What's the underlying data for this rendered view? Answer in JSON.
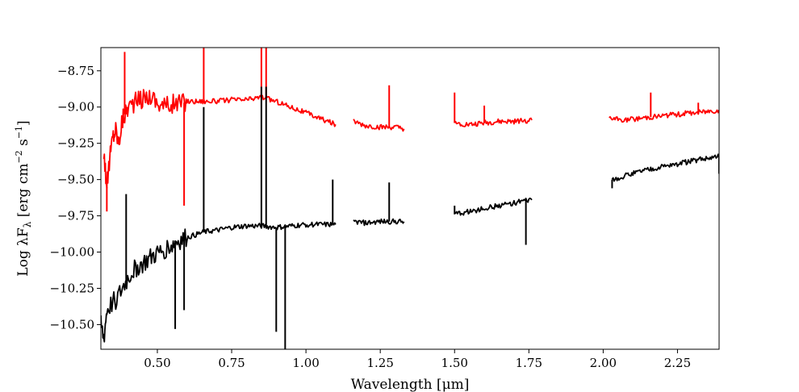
{
  "chart_data": {
    "type": "line",
    "title": "",
    "xlabel": "Wavelength [μm]",
    "ylabel": "Log λF",
    "ylabel_sub": "λ",
    "ylabel_units": " [erg cm",
    "ylabel_exp1": "−2",
    "ylabel_mid": " s",
    "ylabel_exp2": "−1",
    "ylabel_close": "]",
    "xlim": [
      0.31,
      2.39
    ],
    "ylim": [
      -10.67,
      -8.59
    ],
    "xticks": [
      0.5,
      0.75,
      1.0,
      1.25,
      1.5,
      1.75,
      2.0,
      2.25
    ],
    "xtick_labels": [
      "0.50",
      "0.75",
      "1.00",
      "1.25",
      "1.50",
      "1.75",
      "2.00",
      "2.25"
    ],
    "yticks": [
      -8.75,
      -9.0,
      -9.25,
      -9.5,
      -9.75,
      -10.0,
      -10.25,
      -10.5
    ],
    "ytick_labels": [
      "−8.75",
      "−9.00",
      "−9.25",
      "−9.50",
      "−9.75",
      "−10.00",
      "−10.25",
      "−10.50"
    ],
    "grid": false,
    "series": [
      {
        "color": "#ff0000",
        "segments": [
          {
            "x": [
              0.32,
              0.33,
              0.34,
              0.35,
              0.36,
              0.37,
              0.38,
              0.39,
              0.4,
              0.42,
              0.44,
              0.46,
              0.48,
              0.5,
              0.53,
              0.55,
              0.58,
              0.6,
              0.65,
              0.7,
              0.75,
              0.8,
              0.85,
              0.9,
              0.95,
              1.0,
              1.05,
              1.1
            ],
            "y": [
              -9.3,
              -9.55,
              -9.35,
              -9.2,
              -9.15,
              -9.25,
              -9.1,
              -9.05,
              -9.0,
              -8.97,
              -8.95,
              -8.93,
              -8.92,
              -8.97,
              -8.99,
              -8.98,
              -8.97,
              -8.96,
              -8.96,
              -8.96,
              -8.95,
              -8.95,
              -8.93,
              -8.96,
              -9.0,
              -9.04,
              -9.08,
              -9.12
            ]
          },
          {
            "x": [
              1.16,
              1.2,
              1.25,
              1.3,
              1.33
            ],
            "y": [
              -9.1,
              -9.13,
              -9.14,
              -9.14,
              -9.15
            ]
          },
          {
            "x": [
              1.5,
              1.55,
              1.6,
              1.65,
              1.7,
              1.76
            ],
            "y": [
              -9.11,
              -9.12,
              -9.11,
              -9.1,
              -9.1,
              -9.09
            ]
          },
          {
            "x": [
              2.02,
              2.08,
              2.15,
              2.2,
              2.25,
              2.3,
              2.35,
              2.39
            ],
            "y": [
              -9.08,
              -9.09,
              -9.07,
              -9.06,
              -9.05,
              -9.04,
              -9.03,
              -9.02
            ]
          }
        ],
        "spikes": [
          {
            "x": 0.39,
            "y": -8.62
          },
          {
            "x": 0.33,
            "y": -9.72
          },
          {
            "x": 0.59,
            "y": -9.68
          },
          {
            "x": 0.656,
            "y": -8.59
          },
          {
            "x": 0.85,
            "y": -8.59
          },
          {
            "x": 0.866,
            "y": -8.59
          },
          {
            "x": 1.28,
            "y": -8.85
          },
          {
            "x": 1.5,
            "y": -8.9
          },
          {
            "x": 1.6,
            "y": -8.99
          },
          {
            "x": 2.16,
            "y": -8.9
          },
          {
            "x": 2.32,
            "y": -8.97
          }
        ]
      },
      {
        "color": "#000000",
        "segments": [
          {
            "x": [
              0.31,
              0.32,
              0.33,
              0.35,
              0.37,
              0.39,
              0.41,
              0.43,
              0.45,
              0.47,
              0.49,
              0.51,
              0.53,
              0.55,
              0.57,
              0.6,
              0.63,
              0.66,
              0.7,
              0.75,
              0.8,
              0.85,
              0.9,
              0.95,
              1.0,
              1.05,
              1.1
            ],
            "y": [
              -10.5,
              -10.6,
              -10.4,
              -10.35,
              -10.3,
              -10.22,
              -10.15,
              -10.1,
              -10.08,
              -10.05,
              -10.02,
              -10.0,
              -9.97,
              -9.95,
              -9.92,
              -9.9,
              -9.88,
              -9.86,
              -9.85,
              -9.83,
              -9.82,
              -9.82,
              -9.83,
              -9.82,
              -9.81,
              -9.81,
              -9.81
            ]
          },
          {
            "x": [
              1.16,
              1.2,
              1.25,
              1.3,
              1.33
            ],
            "y": [
              -9.79,
              -9.8,
              -9.79,
              -9.79,
              -9.79
            ]
          },
          {
            "x": [
              1.5,
              1.55,
              1.6,
              1.65,
              1.7,
              1.76
            ],
            "y": [
              -9.74,
              -9.72,
              -9.7,
              -9.68,
              -9.66,
              -9.64
            ]
          },
          {
            "x": [
              2.03,
              2.08,
              2.13,
              2.18,
              2.23,
              2.28,
              2.33,
              2.39
            ],
            "y": [
              -9.5,
              -9.47,
              -9.44,
              -9.42,
              -9.4,
              -9.38,
              -9.36,
              -9.34
            ]
          }
        ],
        "spikes": [
          {
            "x": 0.395,
            "y": -9.6
          },
          {
            "x": 0.56,
            "y": -10.53
          },
          {
            "x": 0.59,
            "y": -10.4
          },
          {
            "x": 0.656,
            "y": -9.0
          },
          {
            "x": 0.85,
            "y": -8.86
          },
          {
            "x": 0.866,
            "y": -8.86
          },
          {
            "x": 0.9,
            "y": -10.55
          },
          {
            "x": 0.93,
            "y": -10.67
          },
          {
            "x": 1.09,
            "y": -9.5
          },
          {
            "x": 1.28,
            "y": -9.52
          },
          {
            "x": 1.5,
            "y": -9.68
          },
          {
            "x": 1.74,
            "y": -9.95
          },
          {
            "x": 2.03,
            "y": -9.56
          },
          {
            "x": 2.39,
            "y": -9.46
          }
        ]
      }
    ]
  }
}
